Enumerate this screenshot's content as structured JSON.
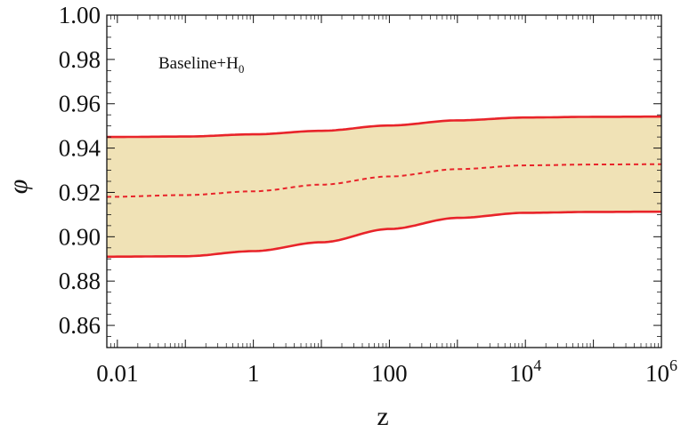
{
  "chart_data": {
    "type": "area",
    "title": "",
    "xlabel": "z",
    "ylabel": "φ",
    "x_scale": "log",
    "xlim": [
      0.007,
      1000000
    ],
    "ylim": [
      0.85,
      1.0
    ],
    "x_ticks": [
      {
        "value": 0.01,
        "base": "0.01",
        "exp": ""
      },
      {
        "value": 1,
        "base": "1",
        "exp": ""
      },
      {
        "value": 100,
        "base": "100",
        "exp": ""
      },
      {
        "value": 10000,
        "base": "10",
        "exp": "4"
      },
      {
        "value": 1000000,
        "base": "10",
        "exp": "6"
      }
    ],
    "y_ticks": [
      {
        "value": 0.86,
        "label": "0.86"
      },
      {
        "value": 0.88,
        "label": "0.88"
      },
      {
        "value": 0.9,
        "label": "0.90"
      },
      {
        "value": 0.92,
        "label": "0.92"
      },
      {
        "value": 0.94,
        "label": "0.94"
      },
      {
        "value": 0.96,
        "label": "0.96"
      },
      {
        "value": 0.98,
        "label": "0.98"
      },
      {
        "value": 1.0,
        "label": "1.00"
      }
    ],
    "annotation": {
      "main": "Baseline+H",
      "sub": "0"
    },
    "x": [
      0.007,
      0.1,
      1,
      10,
      100,
      1000,
      10000,
      100000,
      1000000
    ],
    "series": [
      {
        "role": "upper",
        "style": "solid",
        "values": [
          0.945,
          0.9452,
          0.9462,
          0.9478,
          0.9502,
          0.9525,
          0.9538,
          0.9541,
          0.9542
        ]
      },
      {
        "role": "central",
        "style": "dashed",
        "values": [
          0.918,
          0.9188,
          0.9205,
          0.9235,
          0.9272,
          0.9305,
          0.9322,
          0.9326,
          0.9327
        ]
      },
      {
        "role": "lower",
        "style": "solid",
        "values": [
          0.891,
          0.8912,
          0.8935,
          0.8975,
          0.9035,
          0.9085,
          0.9108,
          0.9112,
          0.9113
        ]
      }
    ],
    "colors": {
      "band": "#f0e2b6",
      "line": "#e8242a",
      "frame": "#111111"
    },
    "grid": false,
    "legend": "none"
  }
}
